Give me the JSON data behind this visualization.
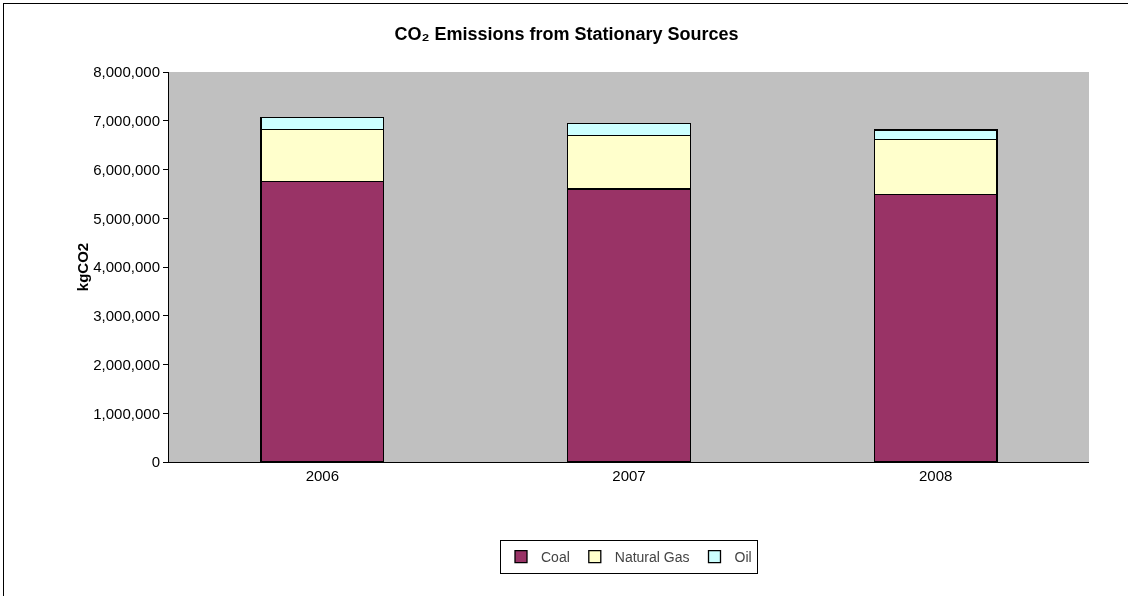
{
  "chart_data": {
    "type": "bar",
    "title": "CO₂ Emissions from Stationary Sources",
    "ylabel": "kgCO2",
    "categories": [
      "2006",
      "2007",
      "2008"
    ],
    "stacked": true,
    "series": [
      {
        "name": "Coal",
        "color": "#993366",
        "values": [
          5750000,
          5600000,
          5490000
        ]
      },
      {
        "name": "Natural Gas",
        "color": "#ffffcc",
        "values": [
          1070000,
          1100000,
          1120000
        ]
      },
      {
        "name": "Oil",
        "color": "#ccffff",
        "values": [
          250000,
          240000,
          200000
        ]
      }
    ],
    "ylim": [
      0,
      8000000
    ],
    "yticks": [
      0,
      {
        "value": 1000000,
        "label": "1,000,000"
      },
      {
        "value": 2000000,
        "label": "2,000,000"
      },
      {
        "value": 3000000,
        "label": "3,000,000"
      },
      {
        "value": 4000000,
        "label": "4,000,000"
      },
      {
        "value": 5000000,
        "label": "5,000,000"
      },
      {
        "value": 6000000,
        "label": "6,000,000"
      },
      {
        "value": 7000000,
        "label": "7,000,000"
      },
      {
        "value": 8000000,
        "label": "8,000,000"
      }
    ],
    "grid": false,
    "legend": "bottom"
  }
}
